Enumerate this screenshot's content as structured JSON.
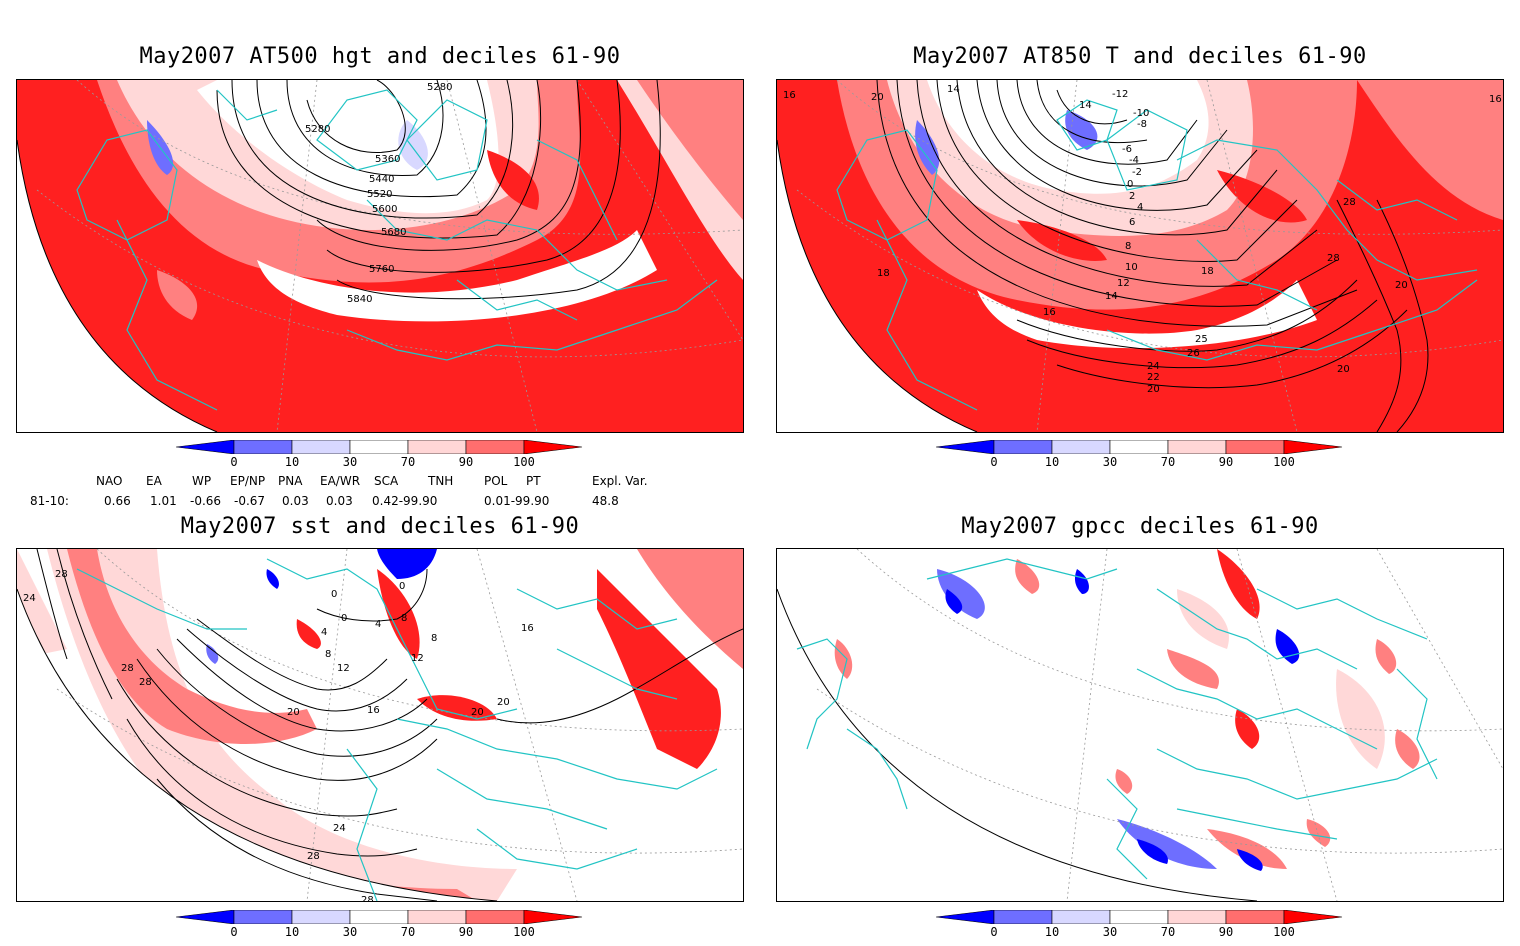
{
  "panels": {
    "top_left": {
      "title": "May2007 AT500 hgt and deciles 61-90",
      "contour_labels": [
        "5280",
        "5280",
        "5360",
        "5440",
        "5520",
        "5600",
        "5680",
        "5760",
        "5840"
      ]
    },
    "top_right": {
      "title": "May2007 AT850 T and deciles 61-90",
      "contour_labels": [
        "16",
        "20",
        "14",
        "14",
        "-12",
        "-10",
        "-8",
        "-6",
        "-4",
        "-2",
        "0",
        "2",
        "4",
        "6",
        "8",
        "10",
        "12",
        "14",
        "16",
        "18",
        "18",
        "26",
        "25",
        "24",
        "22",
        "20",
        "28",
        "28",
        "20",
        "20",
        "16"
      ]
    },
    "bottom_left": {
      "title": "May2007 sst and deciles 61-90",
      "contour_labels": [
        "24",
        "28",
        "28",
        "28",
        "0",
        "0",
        "0",
        "4",
        "4",
        "8",
        "8",
        "8",
        "12",
        "12",
        "16",
        "16",
        "20",
        "20",
        "20",
        "24",
        "28",
        "28"
      ]
    },
    "bottom_right": {
      "title": "May2007 gpcc deciles 61-90"
    }
  },
  "colorbar": {
    "labels": [
      "0",
      "10",
      "30",
      "70",
      "90",
      "100"
    ],
    "colors": [
      "#0000ff",
      "#6e6eff",
      "#d8d8ff",
      "#ffffff",
      "#ffd6d6",
      "#ff6e6e",
      "#ff0000"
    ]
  },
  "teleconnections": {
    "headers": [
      "NAO",
      "EA",
      "WP",
      "EP/NP",
      "PNA",
      "EA/WR",
      "SCA",
      "TNH",
      "POL",
      "PT",
      "Expl. Var."
    ],
    "row_label": "81-10:",
    "values": [
      "0.66",
      "1.01",
      "-0.66",
      "-0.67",
      "0.03",
      "0.03",
      "0.42-99.90",
      "0.01-99.90",
      "48.8"
    ]
  },
  "map_colors": {
    "coast": "#22c4c4",
    "grid": "#999999",
    "contour": "#000000"
  }
}
